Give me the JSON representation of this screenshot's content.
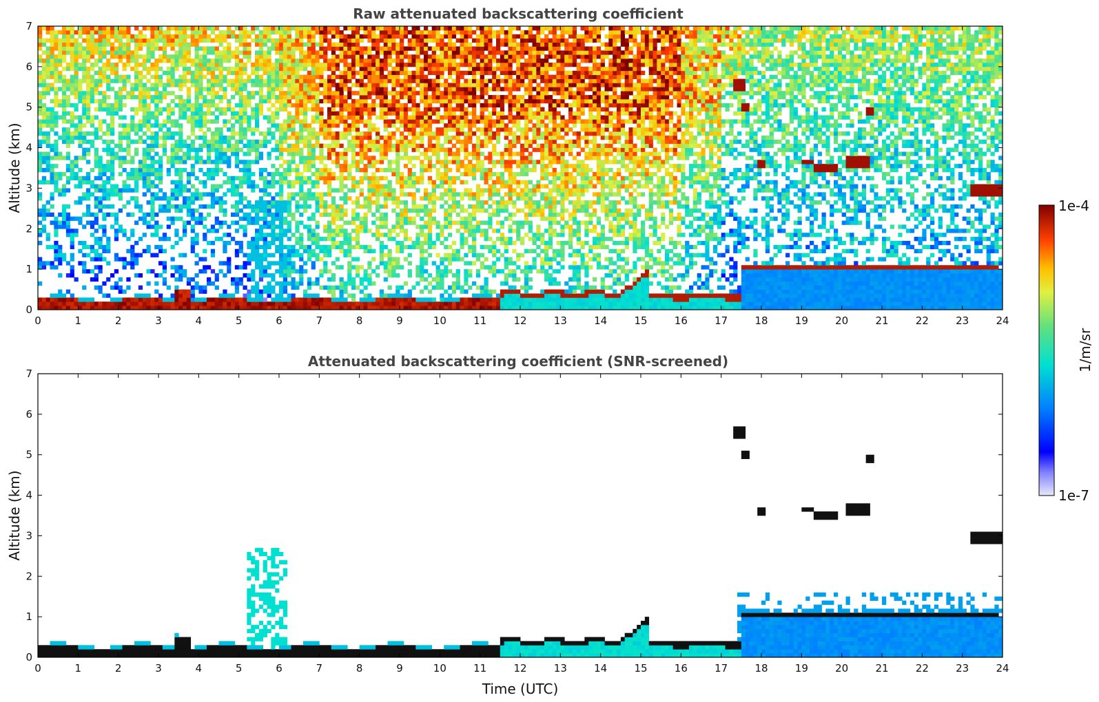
{
  "chart_data": [
    {
      "type": "heatmap",
      "title": "Raw attenuated backscattering coefficient",
      "xlabel": "",
      "ylabel": "Altitude (km)",
      "xlim": [
        0,
        24
      ],
      "ylim": [
        0,
        7
      ],
      "x_ticks": [
        "0",
        "1",
        "2",
        "3",
        "4",
        "5",
        "6",
        "7",
        "8",
        "9",
        "10",
        "11",
        "12",
        "13",
        "14",
        "15",
        "16",
        "17",
        "18",
        "19",
        "20",
        "21",
        "22",
        "23",
        "24"
      ],
      "y_ticks": [
        "0",
        "1",
        "2",
        "3",
        "4",
        "5",
        "6",
        "7"
      ],
      "screened": false,
      "grid": false
    },
    {
      "type": "heatmap",
      "title": "Attenuated backscattering coefficient (SNR-screened)",
      "xlabel": "Time (UTC)",
      "ylabel": "Altitude (km)",
      "xlim": [
        0,
        24
      ],
      "ylim": [
        0,
        7
      ],
      "x_ticks": [
        "0",
        "1",
        "2",
        "3",
        "4",
        "5",
        "6",
        "7",
        "8",
        "9",
        "10",
        "11",
        "12",
        "13",
        "14",
        "15",
        "16",
        "17",
        "18",
        "19",
        "20",
        "21",
        "22",
        "23",
        "24"
      ],
      "y_ticks": [
        "0",
        "1",
        "2",
        "3",
        "4",
        "5",
        "6",
        "7"
      ],
      "screened": true,
      "grid": false
    }
  ],
  "colorbar": {
    "label": "1/m/sr",
    "max_label": "1e-4",
    "min_label": "1e-7",
    "colormap": [
      "#e6e6f5",
      "#0000ff",
      "#00a0ff",
      "#00e0c0",
      "#a0e060",
      "#ffff00",
      "#ff8000",
      "#e00000",
      "#800000"
    ]
  }
}
